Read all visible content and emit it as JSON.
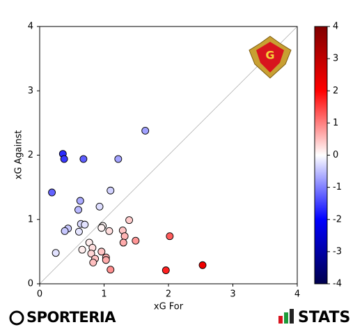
{
  "chart_data": {
    "type": "scatter",
    "xlabel": "xG For",
    "ylabel": "xG Against",
    "x": [
      1.64,
      0.36,
      0.38,
      0.68,
      1.22,
      0.19,
      1.1,
      0.63,
      0.93,
      0.6,
      1.39,
      0.64,
      0.7,
      0.98,
      0.96,
      0.44,
      0.39,
      0.61,
      1.08,
      1.29,
      1.32,
      2.02,
      1.49,
      1.3,
      0.77,
      0.82,
      0.66,
      0.25,
      0.96,
      0.8,
      0.86,
      1.03,
      1.03,
      0.83,
      2.53,
      1.1,
      1.96
    ],
    "y": [
      2.38,
      2.02,
      1.94,
      1.94,
      1.94,
      1.42,
      1.45,
      1.29,
      1.2,
      1.15,
      0.99,
      0.93,
      0.92,
      0.9,
      0.87,
      0.86,
      0.82,
      0.81,
      0.82,
      0.83,
      0.74,
      0.74,
      0.67,
      0.64,
      0.64,
      0.56,
      0.53,
      0.48,
      0.5,
      0.47,
      0.39,
      0.41,
      0.37,
      0.33,
      0.29,
      0.22,
      0.21
    ],
    "xlim": [
      0,
      4
    ],
    "ylim": [
      0,
      4
    ],
    "xticks": [
      0,
      1,
      2,
      3,
      4
    ],
    "yticks": [
      0,
      1,
      2,
      3,
      4
    ],
    "colorbar": {
      "lim": [
        -4,
        4
      ],
      "ticks": [
        -4,
        -3,
        -2,
        -1,
        0,
        1,
        2,
        3,
        4
      ]
    },
    "diagonal_color": "#b0b0b0"
  },
  "footer": {
    "left": "SPORTERIA",
    "right": "STATS"
  }
}
